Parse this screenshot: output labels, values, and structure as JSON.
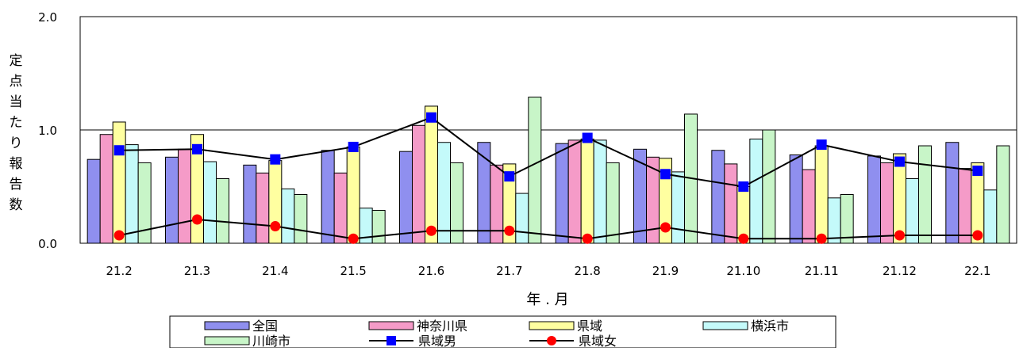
{
  "chart_data": {
    "type": "bar",
    "title": "",
    "xlabel": "年 . 月",
    "ylabel": "定点当たり報告数",
    "ylim": [
      0,
      2.0
    ],
    "yticks": [
      "0.0",
      "1.0",
      "2.0"
    ],
    "grid": true,
    "legend_position": "bottom",
    "categories": [
      "21.2",
      "21.3",
      "21.4",
      "21.5",
      "21.6",
      "21.7",
      "21.8",
      "21.9",
      "21.10",
      "21.11",
      "21.12",
      "22.1"
    ],
    "series": [
      {
        "name": "全国",
        "kind": "bar",
        "color": "#8F8FEF",
        "values": [
          0.74,
          0.76,
          0.69,
          0.82,
          0.81,
          0.89,
          0.88,
          0.83,
          0.82,
          0.78,
          0.77,
          0.89
        ]
      },
      {
        "name": "神奈川県",
        "kind": "bar",
        "color": "#F59BC8",
        "values": [
          0.96,
          0.83,
          0.62,
          0.62,
          1.04,
          0.69,
          0.91,
          0.76,
          0.7,
          0.65,
          0.71,
          0.66
        ]
      },
      {
        "name": "県域",
        "kind": "bar",
        "color": "#FFFFA0",
        "values": [
          1.07,
          0.96,
          0.73,
          0.85,
          1.21,
          0.7,
          0.92,
          0.75,
          0.5,
          0.86,
          0.79,
          0.71
        ]
      },
      {
        "name": "横浜市",
        "kind": "bar",
        "color": "#C4FAFA",
        "values": [
          0.87,
          0.72,
          0.48,
          0.31,
          0.89,
          0.44,
          0.91,
          0.63,
          0.92,
          0.4,
          0.57,
          0.47
        ]
      },
      {
        "name": "川崎市",
        "kind": "bar",
        "color": "#C8F5C8",
        "values": [
          0.71,
          0.57,
          0.43,
          0.29,
          0.71,
          1.29,
          0.71,
          1.14,
          1.0,
          0.43,
          0.86,
          0.86
        ]
      },
      {
        "name": "県域男",
        "kind": "line",
        "color": "#0000FF",
        "marker": "square",
        "values": [
          0.82,
          0.83,
          0.74,
          0.85,
          1.11,
          0.59,
          0.93,
          0.61,
          0.5,
          0.87,
          0.72,
          0.64
        ]
      },
      {
        "name": "県域女",
        "kind": "line",
        "color": "#FF0000",
        "marker": "circle",
        "values": [
          0.07,
          0.21,
          0.15,
          0.04,
          0.11,
          0.11,
          0.04,
          0.14,
          0.04,
          0.04,
          0.07,
          0.07
        ]
      }
    ]
  }
}
